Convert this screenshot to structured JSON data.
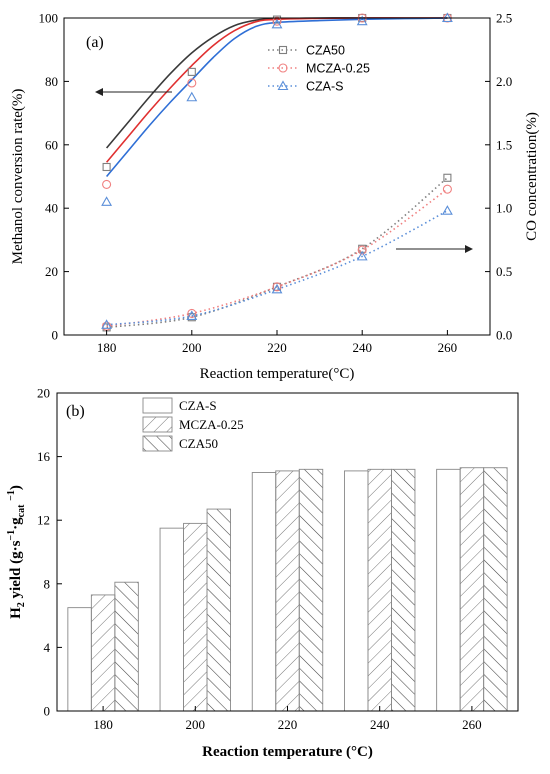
{
  "chart_data": [
    {
      "panel_label": "(a)",
      "type": "line",
      "xlabel": "Reaction temperature(°C)",
      "ylabel": "Methanol conversion rate(%)",
      "y2label": "CO concentration(%)",
      "xlim": [
        170,
        270
      ],
      "ylim": [
        0,
        100
      ],
      "y2lim": [
        0,
        2.5
      ],
      "x_ticks": [
        180,
        200,
        220,
        240,
        260
      ],
      "y_ticks": [
        0,
        20,
        40,
        60,
        80,
        100
      ],
      "y2_ticks": [
        "0.0",
        "0.5",
        "1.0",
        "1.5",
        "2.0",
        "2.5"
      ],
      "legend_position": "top-right",
      "x": [
        180,
        200,
        220,
        240,
        260
      ],
      "series": [
        {
          "name": "CZA50",
          "marker": "square",
          "color": "#7f7f7f",
          "axis": "left",
          "values": [
            53,
            83,
            99.5,
            100,
            100
          ]
        },
        {
          "name": "MCZA-0.25",
          "marker": "circle",
          "color": "#f08080",
          "axis": "left",
          "values": [
            47.5,
            79.5,
            99,
            100,
            100
          ]
        },
        {
          "name": "CZA-S",
          "marker": "triangle",
          "color": "#5b8fd9",
          "axis": "left",
          "values": [
            42,
            75,
            98,
            99,
            100
          ]
        },
        {
          "name": "CZA50",
          "marker": "square",
          "color": "#7f7f7f",
          "axis": "right",
          "values": [
            0.06,
            0.14,
            0.38,
            0.68,
            1.24
          ]
        },
        {
          "name": "MCZA-0.25",
          "marker": "circle",
          "color": "#f08080",
          "axis": "right",
          "values": [
            0.07,
            0.17,
            0.38,
            0.67,
            1.15
          ]
        },
        {
          "name": "CZA-S",
          "marker": "triangle",
          "color": "#5b8fd9",
          "axis": "right",
          "values": [
            0.08,
            0.15,
            0.36,
            0.62,
            0.98
          ]
        }
      ],
      "fit_curves": [
        {
          "color": "#3a3a3a",
          "x": [
            180,
            185,
            190,
            195,
            200,
            205,
            210,
            215,
            220,
            230,
            240,
            250,
            260
          ],
          "values": [
            59,
            67,
            75,
            82.5,
            89,
            94,
            97.6,
            99.3,
            99.8,
            100,
            100,
            100,
            100
          ]
        },
        {
          "color": "#e03030",
          "x": [
            180,
            185,
            190,
            195,
            200,
            205,
            210,
            215,
            220,
            230,
            240,
            250,
            260
          ],
          "values": [
            54.5,
            62.5,
            70.5,
            78,
            85,
            91.3,
            96,
            98.8,
            99.6,
            99.9,
            100,
            100,
            100
          ]
        },
        {
          "color": "#2f6fd6",
          "x": [
            180,
            185,
            190,
            195,
            200,
            205,
            210,
            215,
            220,
            230,
            240,
            250,
            260
          ],
          "values": [
            50,
            58,
            66,
            73.5,
            80.5,
            87.5,
            93.5,
            97.3,
            98.6,
            99.2,
            99.6,
            99.8,
            100
          ]
        }
      ],
      "arrows": [
        "left",
        "right"
      ]
    },
    {
      "panel_label": "(b)",
      "type": "bar",
      "xlabel": "Reaction temperature (°C)",
      "ylabel_main": "H",
      "ylabel_sub": "2",
      "ylabel_rest": " yield (g·s",
      "ylabel_sup1": "−1",
      "ylabel_mid": "·g",
      "ylabel_sub2": "cat",
      "ylabel_sup2": "−1",
      "ylabel_close": ")",
      "ylim": [
        0,
        20
      ],
      "y_ticks": [
        0,
        4,
        8,
        12,
        16,
        20
      ],
      "categories": [
        "180",
        "200",
        "220",
        "240",
        "260"
      ],
      "legend_position": "top-left",
      "series": [
        {
          "name": "CZA-S",
          "pattern": "none",
          "values": [
            6.5,
            11.5,
            15.0,
            15.1,
            15.2
          ]
        },
        {
          "name": "MCZA-0.25",
          "pattern": "forward-diagonal",
          "values": [
            7.3,
            11.8,
            15.1,
            15.2,
            15.3
          ]
        },
        {
          "name": "CZA50",
          "pattern": "back-diagonal",
          "values": [
            8.1,
            12.7,
            15.2,
            15.2,
            15.3
          ]
        }
      ]
    }
  ]
}
